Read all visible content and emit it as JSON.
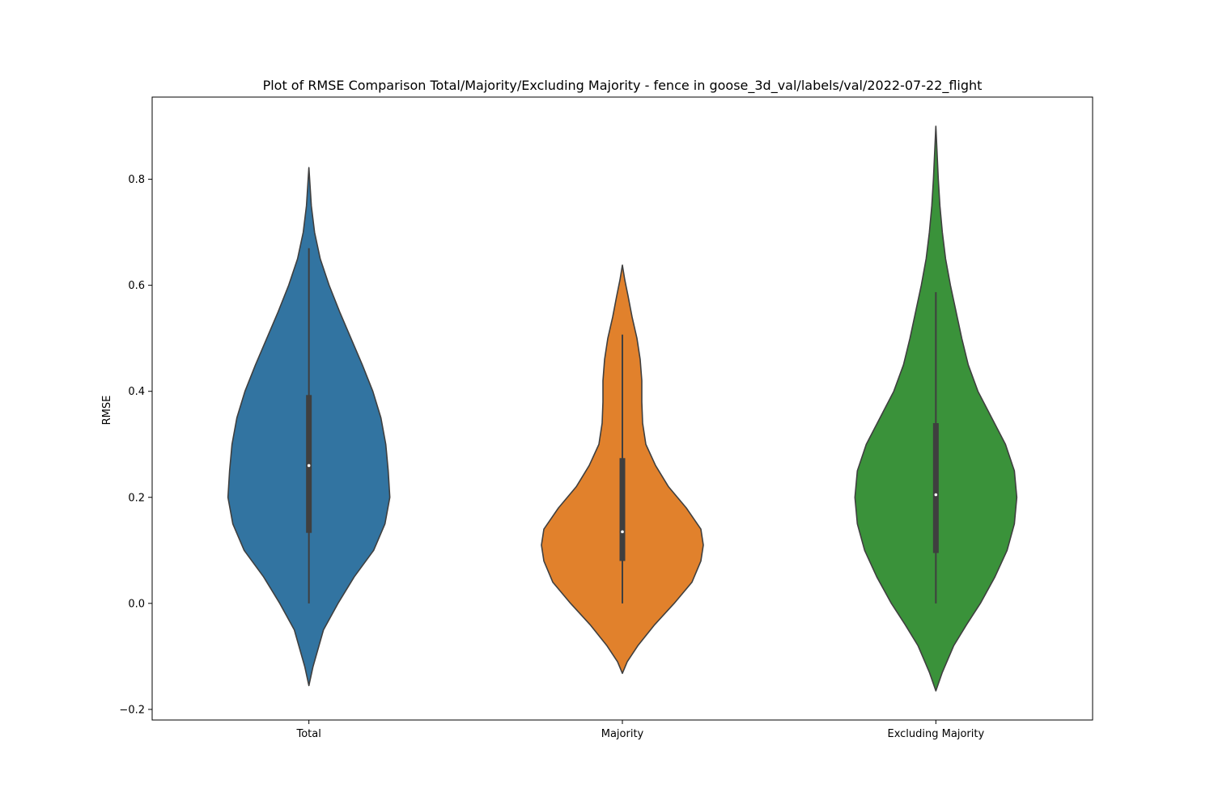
{
  "chart_data": {
    "type": "violin",
    "title": "Plot of RMSE Comparison Total/Majority/Excluding Majority - fence in goose_3d_val/labels/val/2022-07-22_flight",
    "xlabel": "",
    "ylabel": "RMSE",
    "ylim": [
      -0.22,
      0.955
    ],
    "yticks": [
      -0.2,
      0.0,
      0.2,
      0.4,
      0.6,
      0.8
    ],
    "ytick_labels": [
      "−0.2",
      "0.0",
      "0.2",
      "0.4",
      "0.6",
      "0.8"
    ],
    "grid": false,
    "legend": "none",
    "categories": [
      "Total",
      "Majority",
      "Excluding Majority"
    ],
    "series": [
      {
        "category": "Total",
        "color": "#3274a1",
        "kde_min": -0.155,
        "kde_max": 0.822,
        "min": 0.0,
        "max": 0.67,
        "q1": 0.133,
        "median": 0.26,
        "q3": 0.393,
        "density_profile": [
          [
            -0.155,
            0.0
          ],
          [
            -0.12,
            0.05
          ],
          [
            -0.05,
            0.18
          ],
          [
            0.0,
            0.36
          ],
          [
            0.05,
            0.56
          ],
          [
            0.1,
            0.8
          ],
          [
            0.15,
            0.94
          ],
          [
            0.2,
            1.0
          ],
          [
            0.25,
            0.98
          ],
          [
            0.3,
            0.95
          ],
          [
            0.35,
            0.89
          ],
          [
            0.4,
            0.79
          ],
          [
            0.45,
            0.66
          ],
          [
            0.5,
            0.52
          ],
          [
            0.55,
            0.38
          ],
          [
            0.6,
            0.25
          ],
          [
            0.65,
            0.14
          ],
          [
            0.7,
            0.07
          ],
          [
            0.75,
            0.03
          ],
          [
            0.822,
            0.0
          ]
        ]
      },
      {
        "category": "Majority",
        "color": "#e1812c",
        "kde_min": -0.132,
        "kde_max": 0.638,
        "min": 0.0,
        "max": 0.507,
        "q1": 0.08,
        "median": 0.135,
        "q3": 0.274,
        "density_profile": [
          [
            -0.132,
            0.0
          ],
          [
            -0.11,
            0.06
          ],
          [
            -0.08,
            0.19
          ],
          [
            -0.04,
            0.4
          ],
          [
            0.0,
            0.64
          ],
          [
            0.04,
            0.86
          ],
          [
            0.08,
            0.97
          ],
          [
            0.11,
            1.0
          ],
          [
            0.14,
            0.97
          ],
          [
            0.18,
            0.79
          ],
          [
            0.22,
            0.57
          ],
          [
            0.26,
            0.41
          ],
          [
            0.3,
            0.29
          ],
          [
            0.34,
            0.25
          ],
          [
            0.38,
            0.24
          ],
          [
            0.42,
            0.24
          ],
          [
            0.46,
            0.22
          ],
          [
            0.5,
            0.18
          ],
          [
            0.54,
            0.12
          ],
          [
            0.58,
            0.07
          ],
          [
            0.61,
            0.03
          ],
          [
            0.638,
            0.0
          ]
        ]
      },
      {
        "category": "Excluding Majority",
        "color": "#3a923a",
        "kde_min": -0.165,
        "kde_max": 0.9,
        "min": 0.0,
        "max": 0.587,
        "q1": 0.095,
        "median": 0.205,
        "q3": 0.34,
        "density_profile": [
          [
            -0.165,
            0.0
          ],
          [
            -0.13,
            0.08
          ],
          [
            -0.08,
            0.22
          ],
          [
            -0.04,
            0.38
          ],
          [
            0.0,
            0.55
          ],
          [
            0.05,
            0.73
          ],
          [
            0.1,
            0.88
          ],
          [
            0.15,
            0.97
          ],
          [
            0.2,
            1.0
          ],
          [
            0.25,
            0.97
          ],
          [
            0.3,
            0.86
          ],
          [
            0.35,
            0.69
          ],
          [
            0.4,
            0.52
          ],
          [
            0.45,
            0.4
          ],
          [
            0.5,
            0.32
          ],
          [
            0.55,
            0.25
          ],
          [
            0.6,
            0.18
          ],
          [
            0.65,
            0.12
          ],
          [
            0.7,
            0.08
          ],
          [
            0.75,
            0.05
          ],
          [
            0.8,
            0.03
          ],
          [
            0.85,
            0.015
          ],
          [
            0.9,
            0.0
          ]
        ]
      }
    ]
  }
}
